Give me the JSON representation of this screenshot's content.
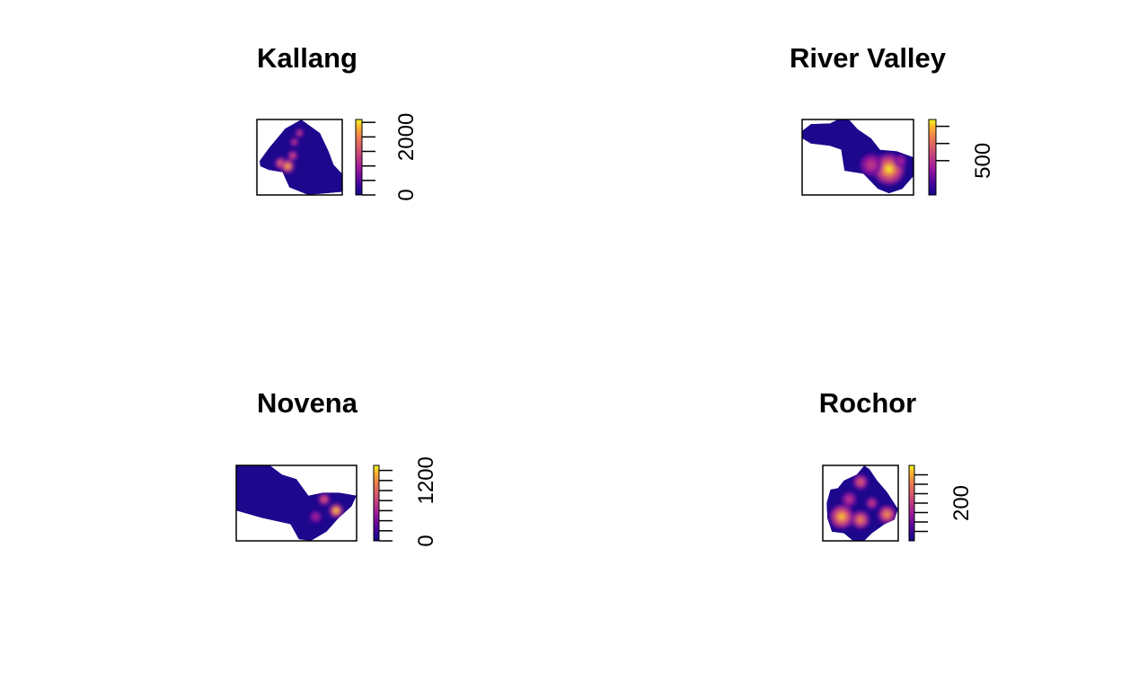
{
  "chart_data": [
    {
      "type": "heatmap",
      "title": "Kallang",
      "legend": {
        "min": 0,
        "max": 2600,
        "ticks": [
          0,
          500,
          1000,
          1500,
          2000,
          2500
        ],
        "labels": [
          "0",
          "2000"
        ]
      },
      "hotspots": [
        {
          "x": 0.28,
          "y": 0.58,
          "r": 0.07,
          "v": 0.75
        },
        {
          "x": 0.36,
          "y": 0.62,
          "r": 0.08,
          "v": 0.95
        },
        {
          "x": 0.42,
          "y": 0.48,
          "r": 0.06,
          "v": 0.6
        },
        {
          "x": 0.5,
          "y": 0.18,
          "r": 0.05,
          "v": 0.55
        },
        {
          "x": 0.44,
          "y": 0.3,
          "r": 0.05,
          "v": 0.5
        }
      ]
    },
    {
      "type": "heatmap",
      "title": "River Valley",
      "legend": {
        "min": 0,
        "max": 1100,
        "ticks": [
          500,
          750,
          1000
        ],
        "labels": [
          "500"
        ]
      },
      "hotspots": [
        {
          "x": 0.78,
          "y": 0.66,
          "r": 0.14,
          "v": 1.0
        },
        {
          "x": 0.62,
          "y": 0.6,
          "r": 0.1,
          "v": 0.45
        },
        {
          "x": 0.88,
          "y": 0.55,
          "r": 0.06,
          "v": 0.35
        }
      ]
    },
    {
      "type": "heatmap",
      "title": "Novena",
      "legend": {
        "min": 0,
        "max": 1500,
        "ticks": [
          0,
          200,
          400,
          600,
          800,
          1000,
          1200,
          1400
        ],
        "labels": [
          "0",
          "1200"
        ]
      },
      "hotspots": [
        {
          "x": 0.83,
          "y": 0.6,
          "r": 0.06,
          "v": 1.0
        },
        {
          "x": 0.73,
          "y": 0.45,
          "r": 0.05,
          "v": 0.65
        },
        {
          "x": 0.66,
          "y": 0.68,
          "r": 0.05,
          "v": 0.35
        }
      ]
    },
    {
      "type": "heatmap",
      "title": "Rochor",
      "legend": {
        "min": 0,
        "max": 400,
        "ticks": [
          50,
          100,
          150,
          200,
          250,
          300,
          350
        ],
        "labels": [
          "200"
        ]
      },
      "hotspots": [
        {
          "x": 0.25,
          "y": 0.68,
          "r": 0.16,
          "v": 0.95
        },
        {
          "x": 0.5,
          "y": 0.72,
          "r": 0.12,
          "v": 0.8
        },
        {
          "x": 0.85,
          "y": 0.65,
          "r": 0.12,
          "v": 0.85
        },
        {
          "x": 0.5,
          "y": 0.22,
          "r": 0.1,
          "v": 0.65
        },
        {
          "x": 0.35,
          "y": 0.45,
          "r": 0.1,
          "v": 0.45
        },
        {
          "x": 0.65,
          "y": 0.5,
          "r": 0.08,
          "v": 0.5
        }
      ]
    }
  ]
}
